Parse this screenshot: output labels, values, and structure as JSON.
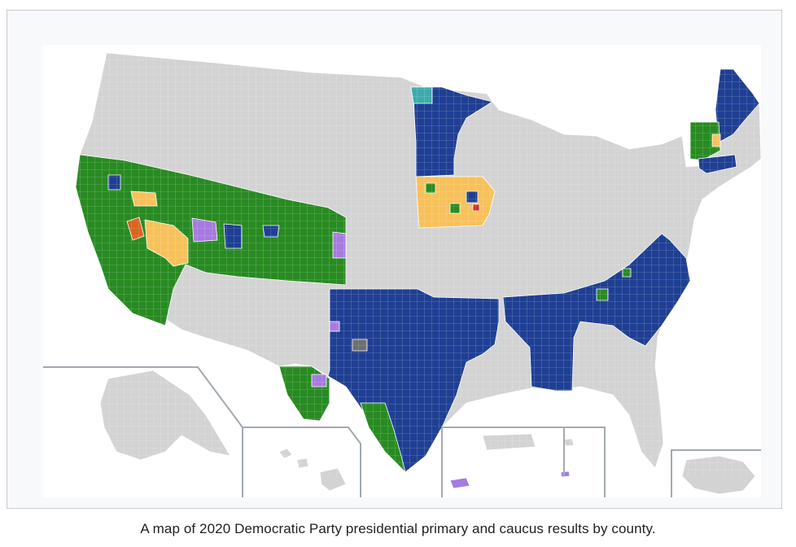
{
  "caption": "A map of 2020 Democratic Party presidential primary and caucus results by county.",
  "colors": {
    "blue": "#1f3f94",
    "green": "#288b22",
    "yellow": "#f7c15a",
    "orange": "#d9641e",
    "purple": "#a77ae0",
    "teal": "#3cabab",
    "gray_dark": "#6e6e6e",
    "red": "#d62728",
    "no_data": "#d3d3d3",
    "water": "#ffffff",
    "inset_border": "#a2a9b1"
  }
}
